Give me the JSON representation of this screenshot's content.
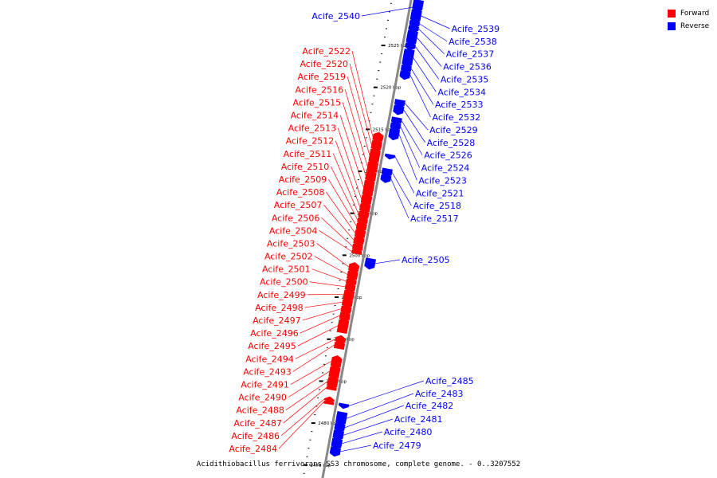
{
  "caption": "Acidithiobacillus ferrivorans SS3 chromosome, complete genome. - 0..3207552",
  "legend": [
    {
      "label": "Forward",
      "color": "#ff0000"
    },
    {
      "label": "Reverse",
      "color": "#0000ff"
    }
  ],
  "colors": {
    "forward": "#ff0000",
    "reverse": "#0000ff",
    "backbone": "#888888"
  },
  "ticks": [
    {
      "kbp": 2525,
      "label": "2525 kbp"
    },
    {
      "kbp": 2520,
      "label": "2520 kbp"
    },
    {
      "kbp": 2515,
      "label": "2515 kbp"
    },
    {
      "kbp": 2510,
      "label": "2510 kbp"
    },
    {
      "kbp": 2505,
      "label": "2505 kbp"
    },
    {
      "kbp": 2500,
      "label": "2500 kbp"
    },
    {
      "kbp": 2495,
      "label": "2495 kbp"
    },
    {
      "kbp": 2490,
      "label": "2490 kbp"
    },
    {
      "kbp": 2485,
      "label": "2485 kbp"
    },
    {
      "kbp": 2480,
      "label": "2480 kbp"
    },
    {
      "kbp": 2475,
      "label": "2475 kbp"
    }
  ],
  "forward_genes": [
    {
      "name": "Acife_2522",
      "start": 2513.9,
      "end": 2514.6
    },
    {
      "name": "Acife_2520",
      "start": 2512.9,
      "end": 2513.8
    },
    {
      "name": "Acife_2519",
      "start": 2511.4,
      "end": 2512.8
    },
    {
      "name": "Acife_2516",
      "start": 2510.2,
      "end": 2511.3
    },
    {
      "name": "Acife_2515",
      "start": 2509.2,
      "end": 2510.1
    },
    {
      "name": "Acife_2514",
      "start": 2507.4,
      "end": 2509.1
    },
    {
      "name": "Acife_2513",
      "start": 2506.4,
      "end": 2507.3
    },
    {
      "name": "Acife_2512",
      "start": 2505.5,
      "end": 2506.3
    },
    {
      "name": "Acife_2511",
      "start": 2504.7,
      "end": 2505.4
    },
    {
      "name": "Acife_2510",
      "start": 2504.1,
      "end": 2504.6
    },
    {
      "name": "Acife_2509",
      "start": 2503.3,
      "end": 2504.0
    },
    {
      "name": "Acife_2508",
      "start": 2502.4,
      "end": 2503.2
    },
    {
      "name": "Acife_2507",
      "start": 2501.6,
      "end": 2502.3
    },
    {
      "name": "Acife_2506",
      "start": 2500.9,
      "end": 2501.5
    },
    {
      "name": "Acife_2504",
      "start": 2500.4,
      "end": 2500.8
    },
    {
      "name": "Acife_2503",
      "start": 2498.4,
      "end": 2499.1
    },
    {
      "name": "Acife_2502",
      "start": 2497.4,
      "end": 2498.3
    },
    {
      "name": "Acife_2501",
      "start": 2496.8,
      "end": 2497.3
    },
    {
      "name": "Acife_2500",
      "start": 2496.1,
      "end": 2496.7
    },
    {
      "name": "Acife_2499",
      "start": 2495.0,
      "end": 2496.0
    },
    {
      "name": "Acife_2498",
      "start": 2494.2,
      "end": 2494.9
    },
    {
      "name": "Acife_2497",
      "start": 2493.4,
      "end": 2494.1
    },
    {
      "name": "Acife_2496",
      "start": 2492.6,
      "end": 2493.3
    },
    {
      "name": "Acife_2495",
      "start": 2491.0,
      "end": 2492.5
    },
    {
      "name": "Acife_2494",
      "start": 2489.9,
      "end": 2490.4
    },
    {
      "name": "Acife_2493",
      "start": 2489.1,
      "end": 2489.8
    },
    {
      "name": "Acife_2491",
      "start": 2487.0,
      "end": 2488.0
    },
    {
      "name": "Acife_2490",
      "start": 2485.7,
      "end": 2486.9
    },
    {
      "name": "Acife_2488",
      "start": 2484.6,
      "end": 2485.6
    },
    {
      "name": "Acife_2487",
      "start": 2484.2,
      "end": 2484.5
    },
    {
      "name": "Acife_2486",
      "start": 2482.9,
      "end": 2483.1
    },
    {
      "name": "Acife_2484",
      "start": 2482.5,
      "end": 2482.8
    }
  ],
  "reverse_genes": [
    {
      "name": "Acife_2540",
      "start": 2529.9,
      "end": 2531.0
    },
    {
      "name": "Acife_2539",
      "start": 2528.6,
      "end": 2529.8
    },
    {
      "name": "Acife_2538",
      "start": 2528.0,
      "end": 2528.5
    },
    {
      "name": "Acife_2537",
      "start": 2527.4,
      "end": 2527.9
    },
    {
      "name": "Acife_2536",
      "start": 2525.9,
      "end": 2527.3
    },
    {
      "name": "Acife_2535",
      "start": 2525.3,
      "end": 2525.8
    },
    {
      "name": "Acife_2534",
      "start": 2523.3,
      "end": 2525.1
    },
    {
      "name": "Acife_2533",
      "start": 2522.6,
      "end": 2523.2
    },
    {
      "name": "Acife_2532",
      "start": 2521.8,
      "end": 2522.5
    },
    {
      "name": "Acife_2529",
      "start": 2518.5,
      "end": 2519.1
    },
    {
      "name": "Acife_2528",
      "start": 2517.6,
      "end": 2518.4
    },
    {
      "name": "Acife_2526",
      "start": 2516.4,
      "end": 2517.0
    },
    {
      "name": "Acife_2524",
      "start": 2515.7,
      "end": 2516.3
    },
    {
      "name": "Acife_2523",
      "start": 2514.6,
      "end": 2515.6
    },
    {
      "name": "Acife_2521",
      "start": 2512.3,
      "end": 2512.6
    },
    {
      "name": "Acife_2518",
      "start": 2510.2,
      "end": 2510.9
    },
    {
      "name": "Acife_2517",
      "start": 2509.5,
      "end": 2510.1
    },
    {
      "name": "Acife_2505",
      "start": 2499.2,
      "end": 2500.2
    },
    {
      "name": "Acife_2485",
      "start": 2482.6,
      "end": 2482.9
    },
    {
      "name": "Acife_2483",
      "start": 2480.6,
      "end": 2481.9
    },
    {
      "name": "Acife_2482",
      "start": 2479.8,
      "end": 2480.5
    },
    {
      "name": "Acife_2481",
      "start": 2478.8,
      "end": 2479.7
    },
    {
      "name": "Acife_2480",
      "start": 2477.8,
      "end": 2478.7
    },
    {
      "name": "Acife_2479",
      "start": 2476.9,
      "end": 2477.7
    }
  ]
}
